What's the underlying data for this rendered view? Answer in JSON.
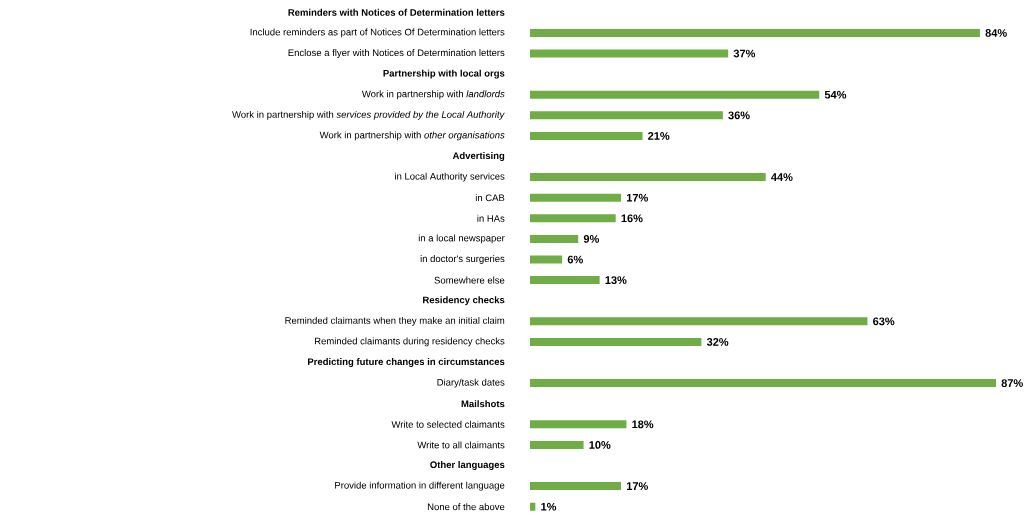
{
  "chart_data": {
    "type": "bar",
    "orientation": "horizontal",
    "color": "#70ad47",
    "categories": [
      "Reminders with Notices of Determination letters",
      "Include reminders as part of Notices Of Determination letters",
      "Enclose a flyer with Notices of Determination letters",
      "Partnership with local orgs",
      "Work in partnership with *landlords*",
      "Work in partnership with *services provided by the Local Authority*",
      "Work in partnership with *other organisations*",
      "Advertising",
      "in Local Authority services",
      "in CAB",
      "in HAs",
      "in a local newspaper",
      "in doctor's surgeries",
      "Somewhere else",
      "Residency checks",
      "Reminded claimants when they make an initial claim",
      "Reminded claimants during residency checks",
      "Predicting future changes in circumstances",
      "Diary/task dates",
      "Mailshots",
      "Write to selected claimants",
      "Write to all claimants",
      "Other languages",
      "Provide information in different language",
      "None of the above"
    ],
    "values": [
      null,
      84,
      37,
      null,
      54,
      36,
      21,
      null,
      44,
      17,
      16,
      9,
      6,
      13,
      null,
      63,
      32,
      null,
      87,
      null,
      18,
      10,
      null,
      17,
      1
    ],
    "value_labels": [
      null,
      "84%",
      "37%",
      null,
      "54%",
      "36%",
      "21%",
      null,
      "44%",
      "17%",
      "16%",
      "9%",
      "6%",
      "13%",
      null,
      "63%",
      "32%",
      null,
      "87%",
      null,
      "18%",
      "10%",
      null,
      "17%",
      "1%"
    ]
  }
}
